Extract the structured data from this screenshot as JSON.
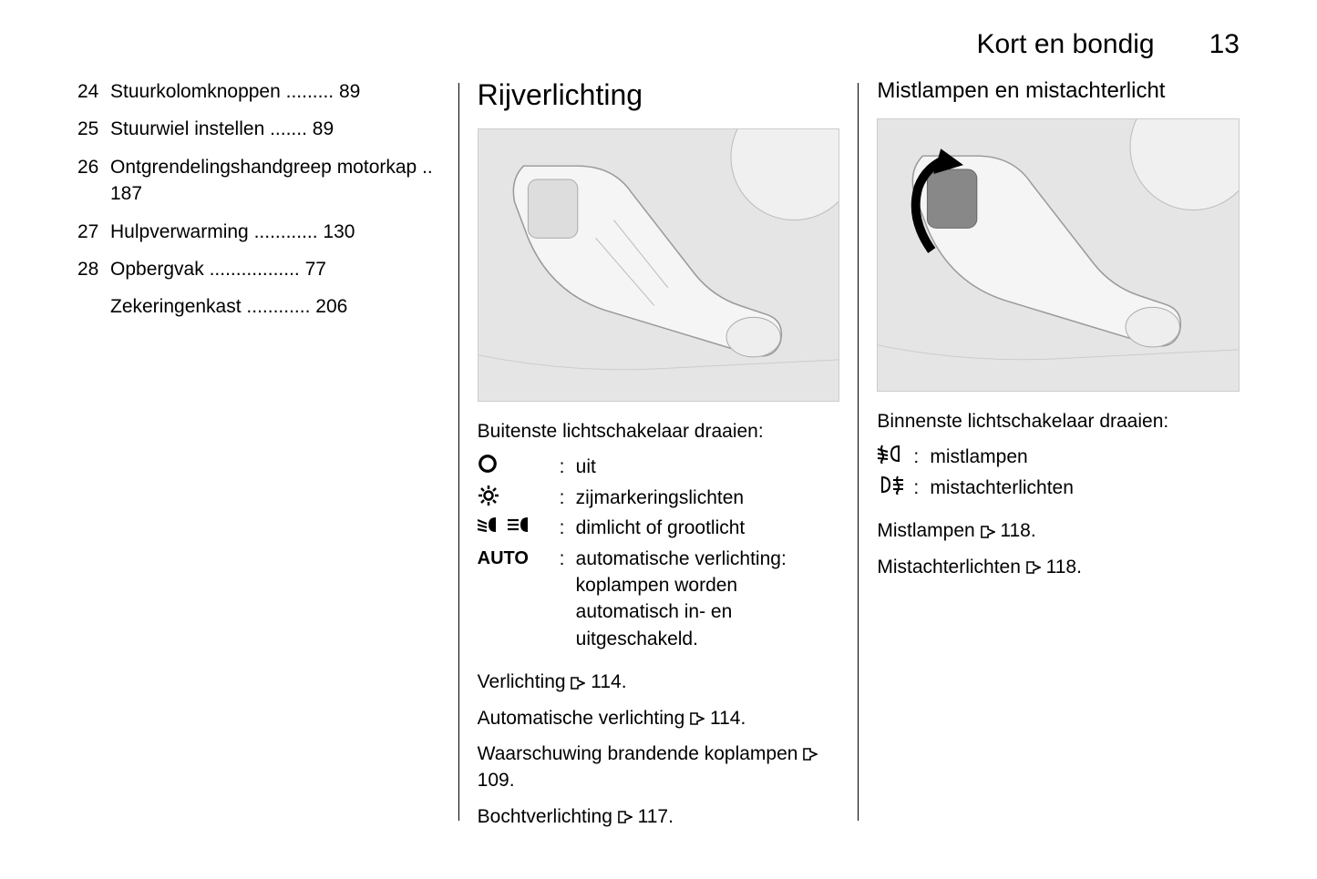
{
  "header": {
    "title": "Kort en bondig",
    "page_number": "13"
  },
  "column1": {
    "toc": [
      {
        "num": "24",
        "label": "Stuurkolomknoppen",
        "page": "89"
      },
      {
        "num": "25",
        "label": "Stuurwiel instellen",
        "page": "89"
      },
      {
        "num": "26",
        "label": "Ontgrendelingshandgreep motorkap",
        "page": "187"
      },
      {
        "num": "27",
        "label": "Hulpverwarming",
        "page": "130"
      },
      {
        "num": "28",
        "label": "Opbergvak",
        "page": "77"
      },
      {
        "num": "",
        "label": "Zekeringenkast",
        "page": "206"
      }
    ]
  },
  "column2": {
    "title": "Rijverlichting",
    "caption": "Buitenste lichtschakelaar draaien:",
    "legend": [
      {
        "icon_type": "off",
        "text": "uit"
      },
      {
        "icon_type": "parking",
        "text": "zijmarkeringslichten"
      },
      {
        "icon_type": "beams",
        "text": "dimlicht of grootlicht"
      },
      {
        "icon_type": "auto",
        "text": "automatische verlichting: koplampen worden automatisch in- en uitgeschakeld."
      }
    ],
    "refs": [
      {
        "label": "Verlichting",
        "page": "114"
      },
      {
        "label": "Automatische verlichting",
        "page": "114"
      },
      {
        "label": "Waarschuwing brandende koplampen",
        "page": "109"
      },
      {
        "label": "Bochtverlichting",
        "page": "117"
      }
    ]
  },
  "column3": {
    "title": "Mistlampen en mistachterlicht",
    "caption": "Binnenste lichtschakelaar draaien:",
    "legend": [
      {
        "icon_type": "fogfront",
        "text": "mistlampen"
      },
      {
        "icon_type": "fogrear",
        "text": "mistachterlichten"
      }
    ],
    "refs": [
      {
        "label": "Mistlampen",
        "page": "118"
      },
      {
        "label": "Mistachterlichten",
        "page": "118"
      }
    ]
  },
  "styling": {
    "background_color": "#ffffff",
    "text_color": "#000000",
    "divider_color": "#000000",
    "illustration_bg": "#e8e8e8",
    "body_fontsize": 21,
    "title_fontsize": 32,
    "header_fontsize": 30,
    "subtitle_fontsize": 24
  }
}
